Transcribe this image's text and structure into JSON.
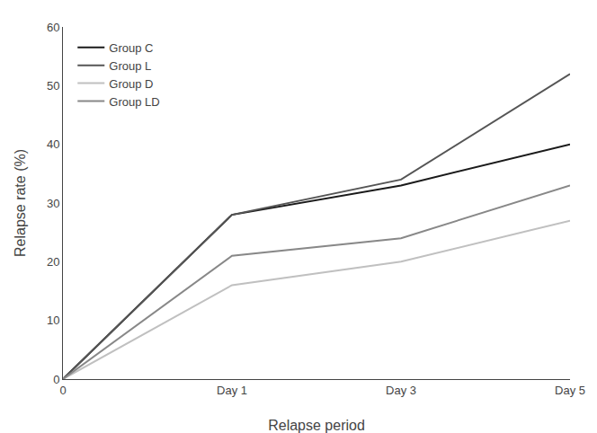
{
  "chart_data": {
    "type": "line",
    "xlabel": "Relapse period",
    "ylabel": "Relapse rate (%)",
    "categories": [
      "0",
      "Day 1",
      "Day 3",
      "Day 5"
    ],
    "series": [
      {
        "name": "Group C",
        "color": "#1a1a1a",
        "values": [
          0,
          28,
          33,
          40
        ]
      },
      {
        "name": "Group L",
        "color": "#555555",
        "values": [
          0,
          28,
          34,
          52
        ]
      },
      {
        "name": "Group D",
        "color": "#c0c0c0",
        "values": [
          0,
          16,
          20,
          27
        ]
      },
      {
        "name": "Group LD",
        "color": "#888888",
        "values": [
          0,
          21,
          24,
          33
        ]
      }
    ],
    "ylim": [
      0,
      60
    ],
    "yticks": [
      0,
      10,
      20,
      30,
      40,
      50,
      60
    ],
    "grid": false,
    "legend": "upper left"
  }
}
